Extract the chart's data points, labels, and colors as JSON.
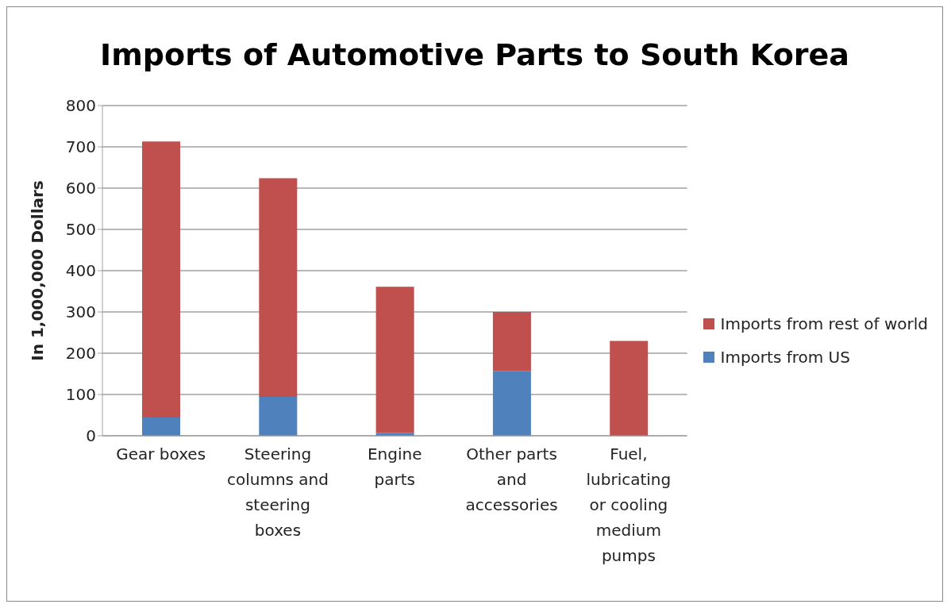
{
  "chart_data": {
    "type": "bar",
    "title": "Imports of Automotive Parts to South Korea",
    "ylabel": "In 1,000,000 Dollars",
    "categories": [
      "Gear boxes",
      "Steering columns and steering boxes",
      "Engine parts",
      "Other parts and accessories",
      "Fuel, lubricating or cooling medium pumps"
    ],
    "series": [
      {
        "name": "Imports from US",
        "color": "#4f81bd",
        "values": [
          44,
          94,
          7,
          157,
          0
        ]
      },
      {
        "name": "Imports from rest of world",
        "color": "#c0504d",
        "values": [
          669,
          530,
          354,
          143,
          230
        ]
      }
    ],
    "stacked": true,
    "ylim": [
      0,
      800
    ],
    "yticks": [
      0,
      100,
      200,
      300,
      400,
      500,
      600,
      700,
      800
    ],
    "grid": "y",
    "legend": "right"
  }
}
